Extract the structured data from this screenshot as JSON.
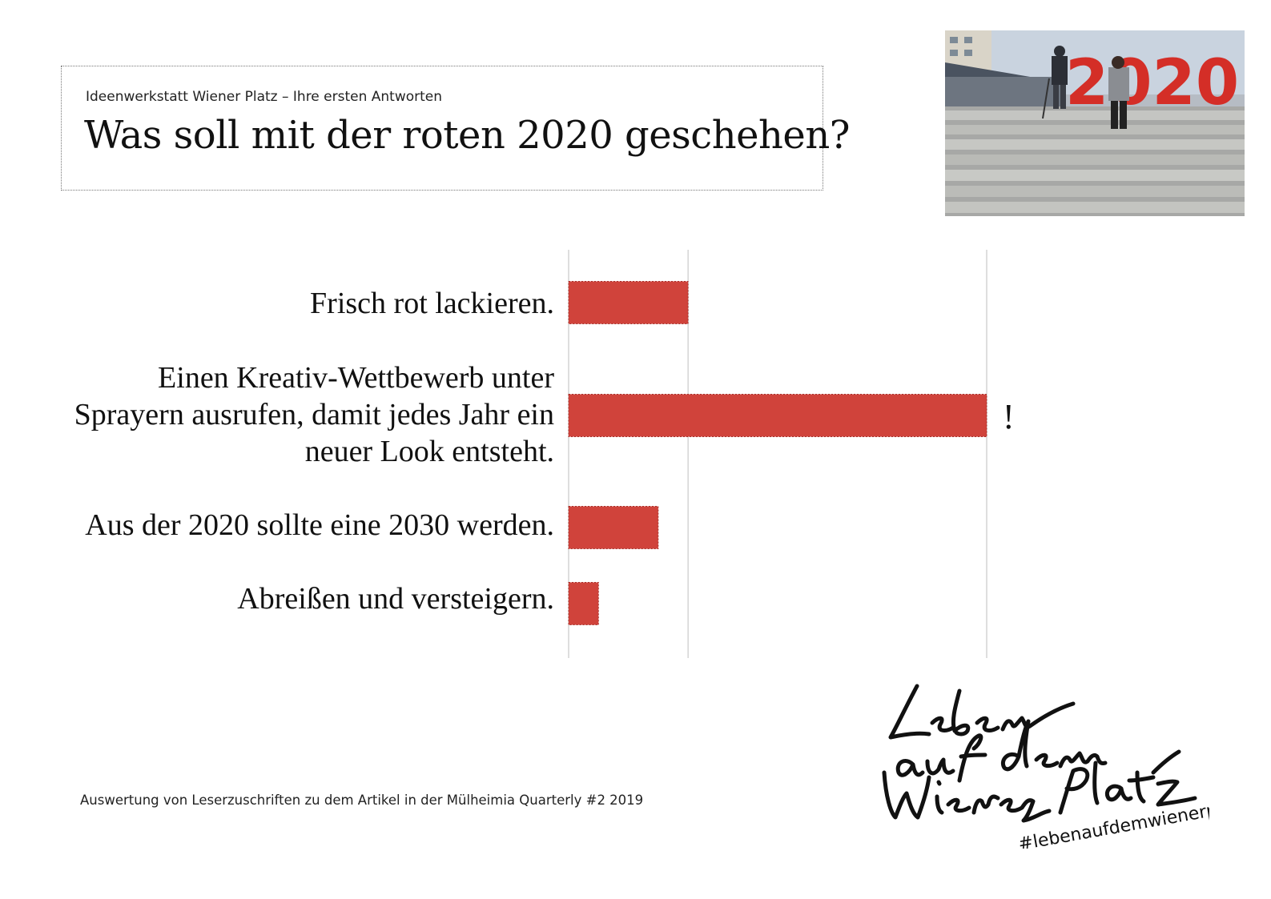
{
  "header": {
    "kicker": "Ideenwerkstatt Wiener Platz – Ihre ersten Antworten",
    "title": "Was soll mit der roten 2020 geschehen?"
  },
  "photo": {
    "sign_text": "2020"
  },
  "chart_data": {
    "type": "bar",
    "orientation": "horizontal",
    "categories": [
      "Frisch rot lackieren.",
      "Einen Kreativ-Wettbewerb unter Sprayern ausrufen, damit jedes Jahr ein neuer Look entsteht.",
      "Aus der 2020 sollte eine 2030 werden.",
      "Abreißen und versteigern."
    ],
    "category_lines": [
      [
        "Frisch rot lackieren."
      ],
      [
        "Einen Kreativ-Wettbewerb unter",
        "Sprayern ausrufen, damit jedes Jahr ein",
        "neuer Look entsteht."
      ],
      [
        "Aus der 2020 sollte eine 2030 werden."
      ],
      [
        "Abreißen und versteigern."
      ]
    ],
    "values": [
      2,
      7,
      1.5,
      0.5
    ],
    "xlim": [
      0,
      7
    ],
    "gridlines": [
      0,
      2,
      7
    ],
    "annotations": [
      {
        "category_index": 1,
        "text": "!"
      }
    ],
    "bar_color": "#d0433b",
    "grid": true,
    "legend": false
  },
  "footer": {
    "note": "Auswertung von Leserzuschriften zu dem Artikel in der Mülheimia Quarterly  #2 2019"
  },
  "logo": {
    "handwritten_text": "Leben auf dem Wiener Platz",
    "hashtag": "#lebenaufdemwienerplatz"
  },
  "colors": {
    "accent": "#d0433b"
  }
}
